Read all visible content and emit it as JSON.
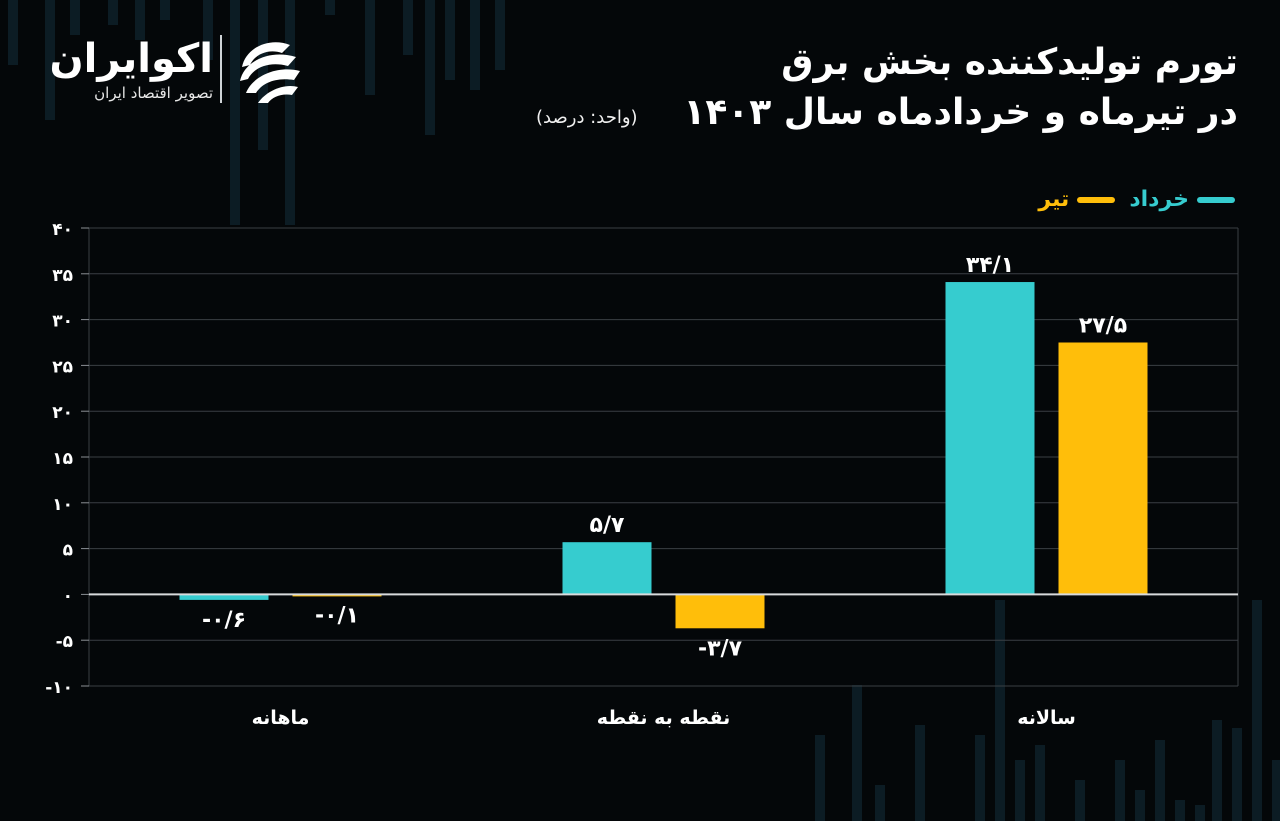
{
  "brand": {
    "name": "اکوایران",
    "tagline": "تصویر اقتصاد ایران",
    "logo_icon": "ecoiran-logo-icon"
  },
  "title": {
    "line1": "تورم تولیدکننده بخش برق",
    "line2": "در تیرماه و خردادماه سال ۱۴۰۳"
  },
  "unit_note": "(واحد: درصد)",
  "colors": {
    "background": "#040709",
    "khordad": "#36CCCF",
    "tir": "#FFBE0A",
    "grid": "#3a3f44"
  },
  "chart_data": {
    "type": "bar",
    "title": "تورم تولیدکننده بخش برق در تیرماه و خردادماه سال ۱۴۰۳",
    "categories": [
      "ماهانه",
      "نقطه به نقطه",
      "سالانه"
    ],
    "series": [
      {
        "name": "خرداد",
        "color": "#36CCCF",
        "values": [
          -0.6,
          5.7,
          34.1
        ],
        "labels": [
          "-۰/۶",
          "۵/۷",
          "۳۴/۱"
        ]
      },
      {
        "name": "تیر",
        "color": "#FFBE0A",
        "values": [
          -0.1,
          -3.7,
          27.5
        ],
        "labels": [
          "-۰/۱",
          "-۳/۷",
          "۲۷/۵"
        ]
      }
    ],
    "ylim": [
      -10,
      40
    ],
    "yticks": [
      40,
      35,
      30,
      25,
      20,
      15,
      10,
      5,
      0,
      -5,
      -10
    ],
    "ytick_labels": [
      "۴۰",
      "۳۵",
      "۳۰",
      "۲۵",
      "۲۰",
      "۱۵",
      "۱۰",
      "۵",
      "۰",
      "-۵",
      "-۱۰"
    ],
    "grid": true,
    "legend": "top-right"
  }
}
